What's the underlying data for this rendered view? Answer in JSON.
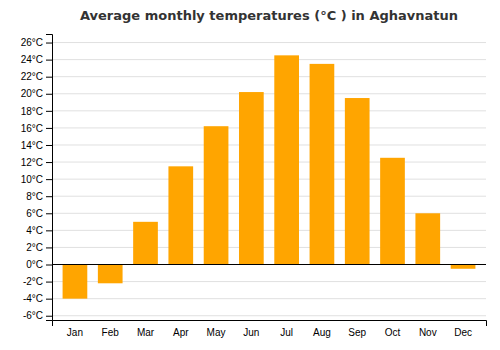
{
  "chart_data": {
    "type": "bar",
    "title": "Average monthly temperatures (°C ) in Aghavnatun",
    "categories": [
      "Jan",
      "Feb",
      "Mar",
      "Apr",
      "May",
      "Jun",
      "Jul",
      "Aug",
      "Sep",
      "Oct",
      "Nov",
      "Dec"
    ],
    "values": [
      -4.0,
      -2.2,
      5.0,
      11.5,
      16.2,
      20.2,
      24.5,
      23.5,
      19.5,
      12.5,
      6.0,
      -0.5
    ],
    "color": "#FFA500",
    "ylim": [
      -6.5,
      27
    ],
    "yticks": [
      {
        "value": -6,
        "label": "-6°C"
      },
      {
        "value": -4,
        "label": "-4°C"
      },
      {
        "value": -2,
        "label": "-2°C"
      },
      {
        "value": 0,
        "label": "0°C"
      },
      {
        "value": 2,
        "label": "2°C"
      },
      {
        "value": 4,
        "label": "4°C"
      },
      {
        "value": 6,
        "label": "6°C"
      },
      {
        "value": 8,
        "label": "8°C"
      },
      {
        "value": 10,
        "label": "10°C"
      },
      {
        "value": 12,
        "label": "12°C"
      },
      {
        "value": 14,
        "label": "14°C"
      },
      {
        "value": 16,
        "label": "16°C"
      },
      {
        "value": 18,
        "label": "18°C"
      },
      {
        "value": 20,
        "label": "20°C"
      },
      {
        "value": 22,
        "label": "22°C"
      },
      {
        "value": 24,
        "label": "24°C"
      },
      {
        "value": 26,
        "label": "26°C"
      }
    ],
    "grid": true
  }
}
